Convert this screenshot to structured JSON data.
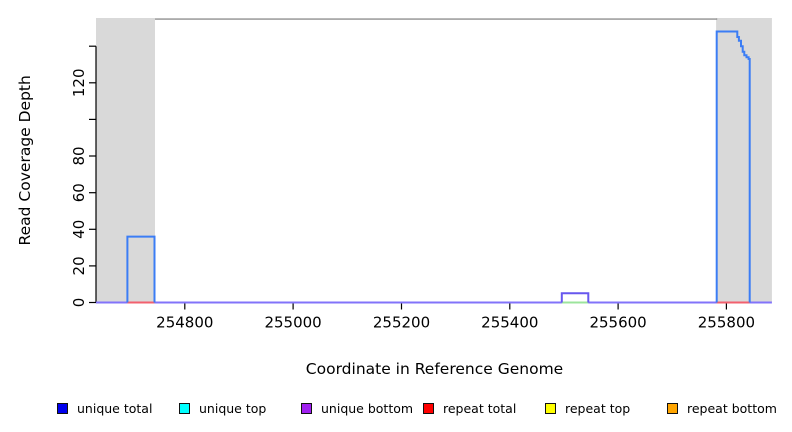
{
  "figure": {
    "background": "#ffffff",
    "text_color": "#000000"
  },
  "chart_data": {
    "type": "line",
    "title": "",
    "xlabel": "Coordinate in Reference Genome",
    "ylabel": "Read Coverage Depth",
    "grid": false,
    "legend_position": "bottom",
    "xlim": [
      254636,
      255886
    ],
    "ylim": [
      0,
      155.4
    ],
    "x_ticks": [
      {
        "value": 254800,
        "label": "254800"
      },
      {
        "value": 255000,
        "label": "255000"
      },
      {
        "value": 255200,
        "label": "255200"
      },
      {
        "value": 255400,
        "label": "255400"
      },
      {
        "value": 255600,
        "label": "255600"
      },
      {
        "value": 255800,
        "label": "255800"
      }
    ],
    "y_ticks": [
      {
        "value": 0,
        "label": "0"
      },
      {
        "value": 20,
        "label": "20"
      },
      {
        "value": 40,
        "label": "40"
      },
      {
        "value": 60,
        "label": "60"
      },
      {
        "value": 80,
        "label": "80"
      },
      {
        "value": 100,
        "label": ""
      },
      {
        "value": 120,
        "label": "120"
      },
      {
        "value": 140,
        "label": ""
      }
    ],
    "shaded_regions": [
      {
        "name": "repeat-region-band-left",
        "x0": 254636,
        "x1": 254745,
        "color": "#d9d9d9"
      },
      {
        "name": "repeat-region-band-right",
        "x0": 255781,
        "x1": 255884,
        "color": "#d9d9d9"
      }
    ],
    "top_rule": {
      "x0": 254745,
      "x1": 255783,
      "y": 154.8,
      "color": "#8f8f8f"
    },
    "series": [
      {
        "name": "zero-coverage-baseline",
        "color": "#8273fa",
        "width": 2,
        "step": true,
        "points": [
          [
            254636,
            0
          ],
          [
            255884,
            0
          ]
        ]
      },
      {
        "name": "green-baseline-segment",
        "color": "#9ce49c",
        "width": 2,
        "step": true,
        "points": [
          [
            255496,
            0
          ],
          [
            255545,
            0
          ]
        ]
      },
      {
        "name": "red-baseline-segment-left",
        "color": "#f2606e",
        "width": 2,
        "step": true,
        "points": [
          [
            254694,
            0
          ],
          [
            254744,
            0
          ]
        ]
      },
      {
        "name": "red-baseline-segment-right",
        "color": "#f2606e",
        "width": 2,
        "step": true,
        "points": [
          [
            255782,
            0
          ],
          [
            255843,
            0
          ]
        ]
      },
      {
        "name": "coverage-peak-left",
        "color": "#3b7df5",
        "width": 2,
        "step": true,
        "points": [
          [
            254694,
            0
          ],
          [
            254694,
            36
          ],
          [
            254744,
            36
          ],
          [
            254744,
            0
          ]
        ]
      },
      {
        "name": "coverage-bump-small",
        "color": "#6757ee",
        "width": 2,
        "step": true,
        "points": [
          [
            255496,
            0
          ],
          [
            255496,
            5
          ],
          [
            255545,
            5
          ],
          [
            255545,
            0
          ]
        ]
      },
      {
        "name": "coverage-peak-right",
        "color": "#3b7df5",
        "width": 2,
        "step": true,
        "points": [
          [
            255782,
            0
          ],
          [
            255782,
            148
          ],
          [
            255816,
            148
          ],
          [
            255820,
            145
          ],
          [
            255823,
            143
          ],
          [
            255827,
            140
          ],
          [
            255830,
            137
          ],
          [
            255833,
            135
          ],
          [
            255837,
            134
          ],
          [
            255841,
            133
          ],
          [
            255843,
            132
          ],
          [
            255843,
            0
          ]
        ]
      }
    ],
    "legend": [
      {
        "label": "unique total",
        "color": "#0000ee"
      },
      {
        "label": "unique top",
        "color": "#00ffff"
      },
      {
        "label": "unique bottom",
        "color": "#a020f0"
      },
      {
        "label": "repeat total",
        "color": "#ff0000"
      },
      {
        "label": "repeat top",
        "color": "#ffff00"
      },
      {
        "label": "repeat bottom",
        "color": "#ffa500"
      }
    ]
  }
}
